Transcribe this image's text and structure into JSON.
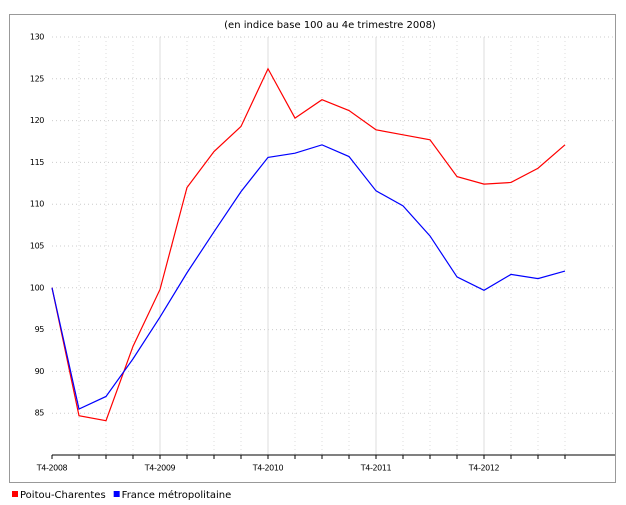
{
  "chart_data": {
    "type": "line",
    "title": "(en indice base 100 au 4e trimestre 2008)",
    "categories": [
      "T4-2008",
      null,
      null,
      null,
      "T4-2009",
      null,
      null,
      null,
      "T4-2010",
      null,
      null,
      null,
      "T4-2011",
      null,
      null,
      null,
      "T4-2012",
      null,
      null,
      null
    ],
    "series": [
      {
        "name": "Poitou-Charentes",
        "color": "#ff0000",
        "values": [
          100,
          84.7,
          84.1,
          93,
          99.8,
          112,
          116.3,
          119.3,
          126.2,
          120.3,
          122.5,
          121.2,
          118.9,
          118.3,
          117.7,
          113.3,
          112.4,
          112.6,
          114.3,
          117.1
        ]
      },
      {
        "name": "France métropolitaine",
        "color": "#0000ff",
        "values": [
          100,
          85.5,
          87,
          91.5,
          96.5,
          101.8,
          106.7,
          111.5,
          115.6,
          116.1,
          117.1,
          115.7,
          111.6,
          109.8,
          106.2,
          101.3,
          99.7,
          101.6,
          101.1,
          102
        ]
      }
    ],
    "ylim": [
      80,
      130
    ],
    "yticks": [
      85,
      90,
      95,
      100,
      105,
      110,
      115,
      120,
      125,
      130
    ],
    "grid": true,
    "legend": "bottom"
  }
}
